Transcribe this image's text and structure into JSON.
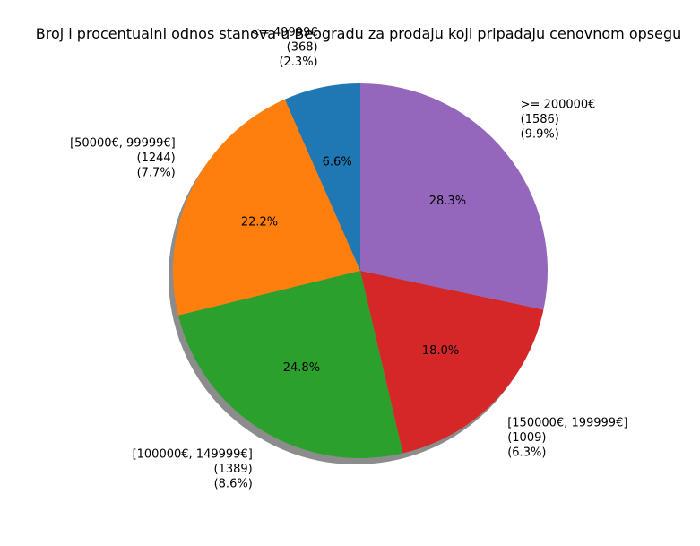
{
  "chart_data": {
    "type": "pie",
    "title": "Broj i procentualni odnos stanova u Beogradu za prodaju koji pripadaju cenovnom opsegu",
    "start_angle_deg": 90,
    "direction": "counterclockwise",
    "shadow": true,
    "slices": [
      {
        "label": "<= 49999€",
        "count": "(368)",
        "share": "(2.3%)",
        "pct": 6.6,
        "pct_label": "6.6%",
        "color": "#1f77b4"
      },
      {
        "label": "[50000€, 99999€]",
        "count": "(1244)",
        "share": "(7.7%)",
        "pct": 22.2,
        "pct_label": "22.2%",
        "color": "#ff7f0e"
      },
      {
        "label": "[100000€, 149999€]",
        "count": "(1389)",
        "share": "(8.6%)",
        "pct": 24.8,
        "pct_label": "24.8%",
        "color": "#2ca02c"
      },
      {
        "label": "[150000€, 199999€]",
        "count": "(1009)",
        "share": "(6.3%)",
        "pct": 18.0,
        "pct_label": "18.0%",
        "color": "#d62728"
      },
      {
        "label": ">= 200000€",
        "count": "(1586)",
        "share": "(9.9%)",
        "pct": 28.3,
        "pct_label": "28.3%",
        "color": "#9467bd"
      }
    ]
  }
}
